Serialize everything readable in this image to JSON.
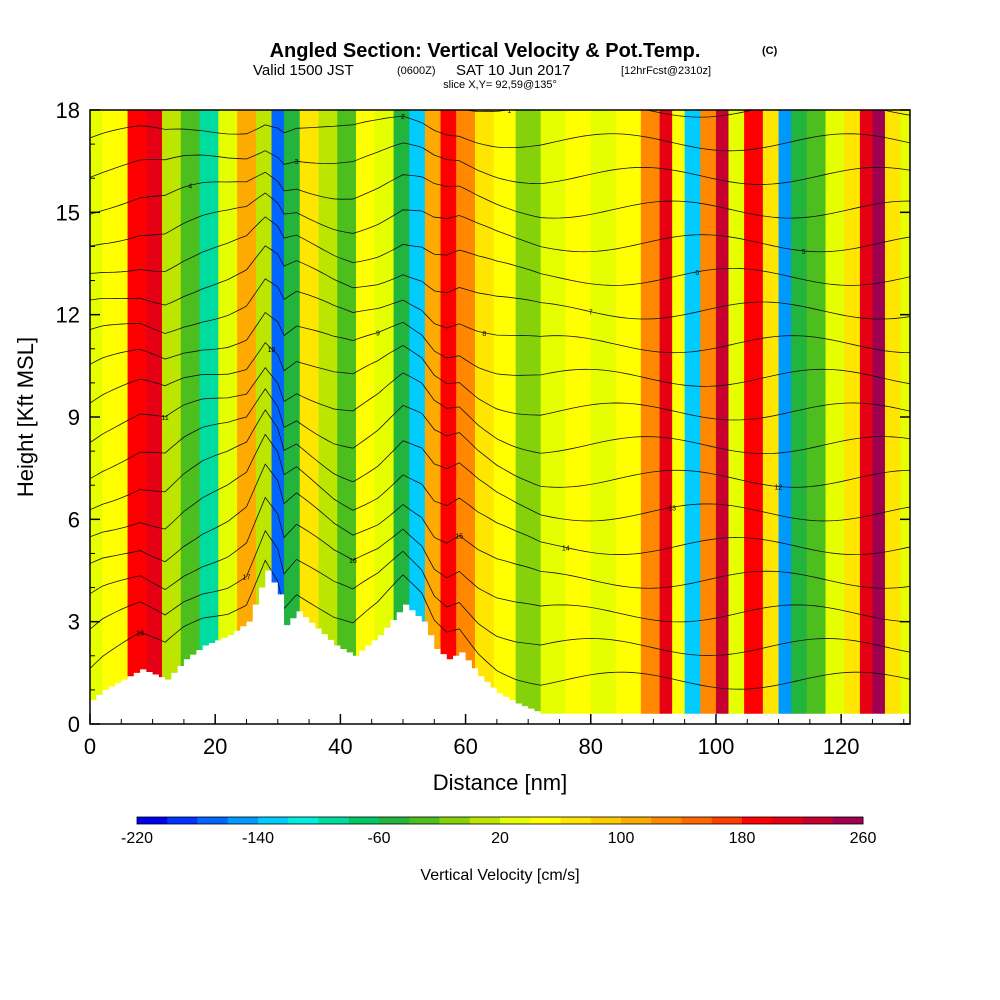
{
  "header": {
    "title": "Angled Section: Vertical Velocity & Pot.Temp.",
    "title_mark": "(C)",
    "valid_prefix": "Valid 1500 JST",
    "valid_utc": "(0600Z)",
    "valid_date": "SAT 10 Jun 2017",
    "forecast": "[12hrFcst@2310z]",
    "slice": "slice X,Y= 92,59@135°"
  },
  "chart_data": {
    "type": "heatmap",
    "title": "Angled Section: Vertical Velocity & Pot.Temp.",
    "xlabel": "Distance [nm]",
    "ylabel": "Height [Kft MSL]",
    "xlim": [
      0,
      131
    ],
    "ylim": [
      0,
      18
    ],
    "x_ticks": [
      "0",
      "20",
      "40",
      "60",
      "80",
      "100",
      "120"
    ],
    "x_tick_values": [
      0,
      20,
      40,
      60,
      80,
      100,
      120
    ],
    "y_ticks": [
      "0",
      "3",
      "6",
      "9",
      "12",
      "15",
      "18"
    ],
    "y_tick_values": [
      0,
      3,
      6,
      9,
      12,
      15,
      18
    ],
    "grid": false,
    "colorbar": {
      "label": "Vertical Velocity [cm/s]",
      "min": -220,
      "max": 260,
      "step": 20,
      "tick_labels": [
        "-220",
        "-140",
        "-60",
        "20",
        "100",
        "180",
        "260"
      ],
      "tick_values": [
        -220,
        -140,
        -60,
        20,
        100,
        180,
        260
      ],
      "colors": [
        "#0000f0",
        "#0033ff",
        "#0066ff",
        "#0099ff",
        "#00ccff",
        "#00eedd",
        "#00dca0",
        "#00c864",
        "#22b43c",
        "#4cbe1e",
        "#86d20a",
        "#bce600",
        "#e6ff00",
        "#ffff00",
        "#ffe600",
        "#ffcc00",
        "#ffaa00",
        "#ff8800",
        "#ff6600",
        "#ff3c00",
        "#ff0000",
        "#e60014",
        "#c8002d",
        "#a00050",
        "#780078"
      ]
    },
    "vertical_velocity_columns": [
      {
        "x": 0,
        "w": 20
      },
      {
        "x": 4,
        "w": 40
      },
      {
        "x": 8,
        "w": 180
      },
      {
        "x": 10,
        "w": 200
      },
      {
        "x": 13,
        "w": 0
      },
      {
        "x": 16,
        "w": -40
      },
      {
        "x": 19,
        "w": -100
      },
      {
        "x": 22,
        "w": 20
      },
      {
        "x": 25,
        "w": 100
      },
      {
        "x": 28,
        "w": 0
      },
      {
        "x": 30,
        "w": -180
      },
      {
        "x": 32,
        "w": -60
      },
      {
        "x": 35,
        "w": 60
      },
      {
        "x": 38,
        "w": 0
      },
      {
        "x": 41,
        "w": -40
      },
      {
        "x": 44,
        "w": 40
      },
      {
        "x": 47,
        "w": 20
      },
      {
        "x": 50,
        "w": -60
      },
      {
        "x": 52,
        "w": -140
      },
      {
        "x": 55,
        "w": 100
      },
      {
        "x": 57,
        "w": 180
      },
      {
        "x": 60,
        "w": 120
      },
      {
        "x": 63,
        "w": 60
      },
      {
        "x": 66,
        "w": 40
      },
      {
        "x": 70,
        "w": -20
      },
      {
        "x": 74,
        "w": 20
      },
      {
        "x": 78,
        "w": 40
      },
      {
        "x": 82,
        "w": 20
      },
      {
        "x": 86,
        "w": 40
      },
      {
        "x": 90,
        "w": 120
      },
      {
        "x": 92,
        "w": 200
      },
      {
        "x": 94,
        "w": 40
      },
      {
        "x": 96,
        "w": -140
      },
      {
        "x": 99,
        "w": 120
      },
      {
        "x": 101,
        "w": 220
      },
      {
        "x": 103,
        "w": 20
      },
      {
        "x": 106,
        "w": 180
      },
      {
        "x": 109,
        "w": 60
      },
      {
        "x": 111,
        "w": -160
      },
      {
        "x": 113,
        "w": -60
      },
      {
        "x": 116,
        "w": -40
      },
      {
        "x": 119,
        "w": 20
      },
      {
        "x": 122,
        "w": 60
      },
      {
        "x": 124,
        "w": 200
      },
      {
        "x": 126,
        "w": 240
      },
      {
        "x": 128,
        "w": 60
      },
      {
        "x": 131,
        "w": 20
      }
    ],
    "contour_labels": [
      "18",
      "17",
      "16",
      "15",
      "14",
      "13",
      "12",
      "11",
      "10",
      "9",
      "8",
      "7",
      "6",
      "5",
      "4",
      "3",
      "2",
      "1"
    ],
    "terrain_profile": [
      {
        "x": 0,
        "h": 0.7
      },
      {
        "x": 2,
        "h": 1.0
      },
      {
        "x": 5,
        "h": 1.3
      },
      {
        "x": 8,
        "h": 1.6
      },
      {
        "x": 12,
        "h": 1.3
      },
      {
        "x": 15,
        "h": 1.9
      },
      {
        "x": 18,
        "h": 2.3
      },
      {
        "x": 22,
        "h": 2.6
      },
      {
        "x": 25,
        "h": 3.0
      },
      {
        "x": 28,
        "h": 4.5
      },
      {
        "x": 30,
        "h": 3.8
      },
      {
        "x": 31,
        "h": 2.9
      },
      {
        "x": 33,
        "h": 3.3
      },
      {
        "x": 36,
        "h": 2.8
      },
      {
        "x": 39,
        "h": 2.3
      },
      {
        "x": 42,
        "h": 2.0
      },
      {
        "x": 46,
        "h": 2.6
      },
      {
        "x": 50,
        "h": 3.5
      },
      {
        "x": 53,
        "h": 3.0
      },
      {
        "x": 55,
        "h": 2.2
      },
      {
        "x": 57,
        "h": 1.9
      },
      {
        "x": 59,
        "h": 2.1
      },
      {
        "x": 62,
        "h": 1.4
      },
      {
        "x": 65,
        "h": 0.9
      },
      {
        "x": 68,
        "h": 0.6
      },
      {
        "x": 72,
        "h": 0.3
      },
      {
        "x": 131,
        "h": 0.3
      }
    ]
  }
}
